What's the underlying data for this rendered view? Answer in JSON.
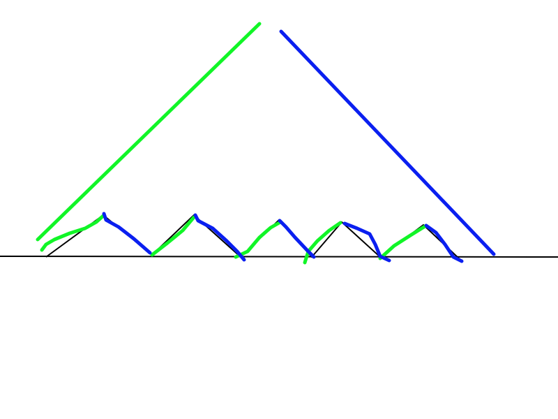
{
  "canvas": {
    "background": "#ffffff"
  },
  "colors": {
    "baseline": "#000000",
    "green": "#11f527",
    "blue": "#0a1ff0"
  }
}
